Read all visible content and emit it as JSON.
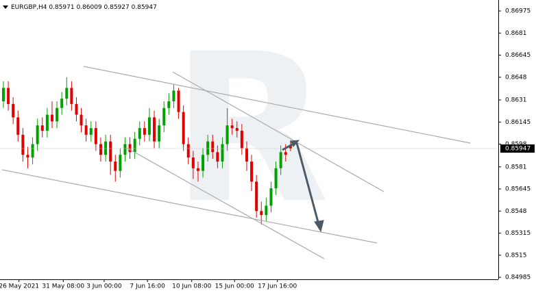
{
  "chart_data": {
    "type": "candlestick",
    "symbol": "EURGBP,H4",
    "series": [
      {
        "name": "EURGBP",
        "up_color": "#00a000",
        "down_color": "#e00000",
        "open": [
          0.863,
          0.864,
          0.8628,
          0.8618,
          0.8605,
          0.859,
          0.8588,
          0.8598,
          0.8612,
          0.8608,
          0.862,
          0.8615,
          0.8625,
          0.8632,
          0.864,
          0.8628,
          0.862,
          0.8612,
          0.8605,
          0.861,
          0.8598,
          0.859,
          0.86,
          0.8585,
          0.8578,
          0.859,
          0.8598,
          0.8592,
          0.8602,
          0.861,
          0.8605,
          0.8618,
          0.86,
          0.8612,
          0.8625,
          0.863,
          0.8638,
          0.8622,
          0.8598,
          0.8588,
          0.858,
          0.8578,
          0.859,
          0.86,
          0.8592,
          0.8585,
          0.8598,
          0.8612,
          0.861,
          0.8608,
          0.8595,
          0.8585,
          0.857,
          0.8548,
          0.8545,
          0.8552,
          0.8565,
          0.858,
          0.8592,
          0.85971
        ],
        "high": [
          0.8645,
          0.8645,
          0.8633,
          0.8623,
          0.861,
          0.8596,
          0.8603,
          0.8617,
          0.8618,
          0.8625,
          0.863,
          0.863,
          0.8637,
          0.8648,
          0.8645,
          0.8633,
          0.8625,
          0.8617,
          0.8615,
          0.8615,
          0.8603,
          0.8605,
          0.8605,
          0.859,
          0.8595,
          0.8603,
          0.8603,
          0.8607,
          0.8615,
          0.8615,
          0.8625,
          0.8623,
          0.8617,
          0.863,
          0.8636,
          0.8643,
          0.864,
          0.8627,
          0.8603,
          0.8593,
          0.8585,
          0.8595,
          0.8605,
          0.8605,
          0.8597,
          0.8603,
          0.8625,
          0.8617,
          0.8615,
          0.8613,
          0.86,
          0.859,
          0.8575,
          0.8555,
          0.8558,
          0.857,
          0.8585,
          0.8597,
          0.8598,
          0.86009
        ],
        "low": [
          0.8625,
          0.8623,
          0.8613,
          0.86,
          0.8585,
          0.858,
          0.8583,
          0.8593,
          0.8603,
          0.8603,
          0.861,
          0.861,
          0.862,
          0.8627,
          0.8623,
          0.8615,
          0.8607,
          0.86,
          0.86,
          0.8593,
          0.8585,
          0.8585,
          0.8575,
          0.857,
          0.8573,
          0.8585,
          0.8587,
          0.8587,
          0.8597,
          0.86,
          0.86,
          0.8595,
          0.8595,
          0.8607,
          0.862,
          0.8625,
          0.8617,
          0.8593,
          0.8583,
          0.8572,
          0.857,
          0.8573,
          0.8585,
          0.8587,
          0.858,
          0.858,
          0.8593,
          0.8605,
          0.8603,
          0.859,
          0.8578,
          0.8563,
          0.8543,
          0.8538,
          0.854,
          0.8547,
          0.856,
          0.8575,
          0.8585,
          0.85927
        ],
        "close": [
          0.864,
          0.8628,
          0.8618,
          0.8605,
          0.859,
          0.8588,
          0.8598,
          0.8612,
          0.8608,
          0.862,
          0.8615,
          0.8625,
          0.8632,
          0.864,
          0.8628,
          0.862,
          0.8612,
          0.8605,
          0.861,
          0.8598,
          0.859,
          0.86,
          0.8585,
          0.8578,
          0.859,
          0.8598,
          0.8592,
          0.8602,
          0.861,
          0.8605,
          0.8618,
          0.86,
          0.8612,
          0.8625,
          0.863,
          0.8638,
          0.8622,
          0.8598,
          0.8588,
          0.858,
          0.8578,
          0.859,
          0.86,
          0.8592,
          0.8585,
          0.8598,
          0.8612,
          0.861,
          0.8608,
          0.8595,
          0.8585,
          0.857,
          0.8548,
          0.8545,
          0.8552,
          0.8565,
          0.858,
          0.8592,
          0.859,
          0.85947
        ]
      }
    ],
    "xlim": [
      -0.7,
      101.7
    ],
    "xticks": [
      {
        "value": 3.2,
        "label": "26 May 2021"
      },
      {
        "value": 12.3,
        "label": "31 May 08:00"
      },
      {
        "value": 20.7,
        "label": "3 Jun 00:00"
      },
      {
        "value": 29.6,
        "label": "7 Jun 16:00"
      },
      {
        "value": 38.7,
        "label": "10 Jun 08:00"
      },
      {
        "value": 47.5,
        "label": "15 Jun 00:00"
      },
      {
        "value": 56.3,
        "label": "17 Jun 16:00"
      }
    ],
    "ylim": [
      0.8497,
      0.87057
    ],
    "yticks": [
      0.86975,
      0.8681,
      0.86645,
      0.8648,
      0.8631,
      0.86145,
      0.8598,
      0.8581,
      0.85645,
      0.8548,
      0.85315,
      0.8515,
      0.84985
    ]
  }
}
